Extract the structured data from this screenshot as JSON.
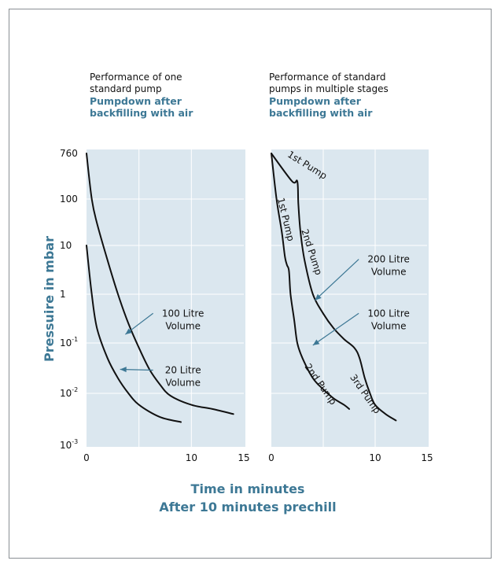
{
  "chart_data": [
    {
      "type": "line",
      "title": "Performance of one standard pump",
      "subtitle": "Pumpdown after backfilling with air",
      "ylabel": "Pressuire in mbar",
      "xlabel": "Time in minutes",
      "xlabel2": "After 10 minutes prechill",
      "y_scale": "log",
      "xlim": [
        0,
        15
      ],
      "ylim": [
        0.001,
        1000
      ],
      "x_ticks": [
        "0",
        "10",
        "15"
      ],
      "y_ticks": [
        {
          "base": "760",
          "exp": ""
        },
        {
          "base": "100",
          "exp": ""
        },
        {
          "base": "10",
          "exp": ""
        },
        {
          "base": "1",
          "exp": ""
        },
        {
          "base": "10",
          "exp": "-1"
        },
        {
          "base": "10",
          "exp": "-2"
        },
        {
          "base": "10",
          "exp": "-3"
        }
      ],
      "grid": true,
      "series": [
        {
          "name": "100 Litre Volume",
          "points": [
            [
              0,
              760
            ],
            [
              0.5,
              100
            ],
            [
              1,
              30
            ],
            [
              2,
              5
            ],
            [
              3,
              1
            ],
            [
              4,
              0.25
            ],
            [
              5,
              0.08
            ],
            [
              6,
              0.03
            ],
            [
              7,
              0.015
            ],
            [
              8,
              0.009
            ],
            [
              10,
              0.006
            ],
            [
              12,
              0.005
            ],
            [
              14,
              0.004
            ]
          ]
        },
        {
          "name": "20 Litre Volume",
          "points": [
            [
              0,
              10
            ],
            [
              0.5,
              1
            ],
            [
              1,
              0.2
            ],
            [
              2,
              0.05
            ],
            [
              3,
              0.02
            ],
            [
              4,
              0.01
            ],
            [
              5,
              0.006
            ],
            [
              7,
              0.0035
            ],
            [
              9,
              0.0028
            ]
          ]
        }
      ],
      "annotations": [
        {
          "text": [
            "100 Litre",
            "Volume"
          ],
          "x": 9.2,
          "y": 0.35,
          "target": [
            3.7,
            0.15
          ]
        },
        {
          "text": [
            "20 Litre",
            "Volume"
          ],
          "x": 9.2,
          "y": 0.025,
          "target": [
            3.2,
            0.03
          ]
        }
      ]
    },
    {
      "type": "line",
      "title": "Performance of standard pumps in multiple stages",
      "subtitle": "Pumpdown after backfilling with air",
      "y_scale": "log",
      "xlim": [
        0,
        15
      ],
      "ylim": [
        0.001,
        1000
      ],
      "x_ticks": [
        "0",
        "10",
        "15"
      ],
      "grid": true,
      "series": [
        {
          "name": "200 Litre Volume",
          "points": [
            [
              0,
              760
            ],
            [
              2,
              220
            ],
            [
              2.5,
              220
            ],
            [
              2.6,
              80
            ],
            [
              2.8,
              20
            ],
            [
              3.2,
              5
            ],
            [
              4,
              1
            ],
            [
              5,
              0.4
            ],
            [
              6,
              0.2
            ],
            [
              7,
              0.12
            ],
            [
              8,
              0.08
            ],
            [
              8.5,
              0.05
            ],
            [
              9,
              0.02
            ],
            [
              9.5,
              0.01
            ],
            [
              10,
              0.006
            ],
            [
              11,
              0.004
            ],
            [
              12,
              0.003
            ]
          ]
        },
        {
          "name": "100 Litre Volume",
          "points": [
            [
              0,
              760
            ],
            [
              0.5,
              100
            ],
            [
              1,
              20
            ],
            [
              1.3,
              6
            ],
            [
              1.5,
              4
            ],
            [
              1.7,
              3
            ],
            [
              1.85,
              1
            ],
            [
              2.2,
              0.3
            ],
            [
              2.5,
              0.1
            ],
            [
              3,
              0.05
            ],
            [
              4,
              0.02
            ],
            [
              5,
              0.012
            ],
            [
              6,
              0.008
            ],
            [
              7,
              0.006
            ],
            [
              7.5,
              0.005
            ]
          ]
        }
      ],
      "curve_labels": [
        {
          "text": "1st Pump",
          "x": 3.3,
          "y": 400,
          "angle": 32
        },
        {
          "text": "1st Pump",
          "x": 1.1,
          "y": 35,
          "angle": 76
        },
        {
          "text": "2nd Pump",
          "x": 3.6,
          "y": 7,
          "angle": 72
        },
        {
          "text": "2nd Pump",
          "x": 4.5,
          "y": 0.014,
          "angle": 55
        },
        {
          "text": "3rd Pump",
          "x": 8.8,
          "y": 0.009,
          "angle": 55
        }
      ],
      "annotations": [
        {
          "text": [
            "200 Litre",
            "Volume"
          ],
          "x": 11.3,
          "y": 4.5,
          "target": [
            4.2,
            0.75
          ]
        },
        {
          "text": [
            "100 Litre",
            "Volume"
          ],
          "x": 11.3,
          "y": 0.35,
          "target": [
            4.0,
            0.09
          ]
        }
      ]
    }
  ]
}
